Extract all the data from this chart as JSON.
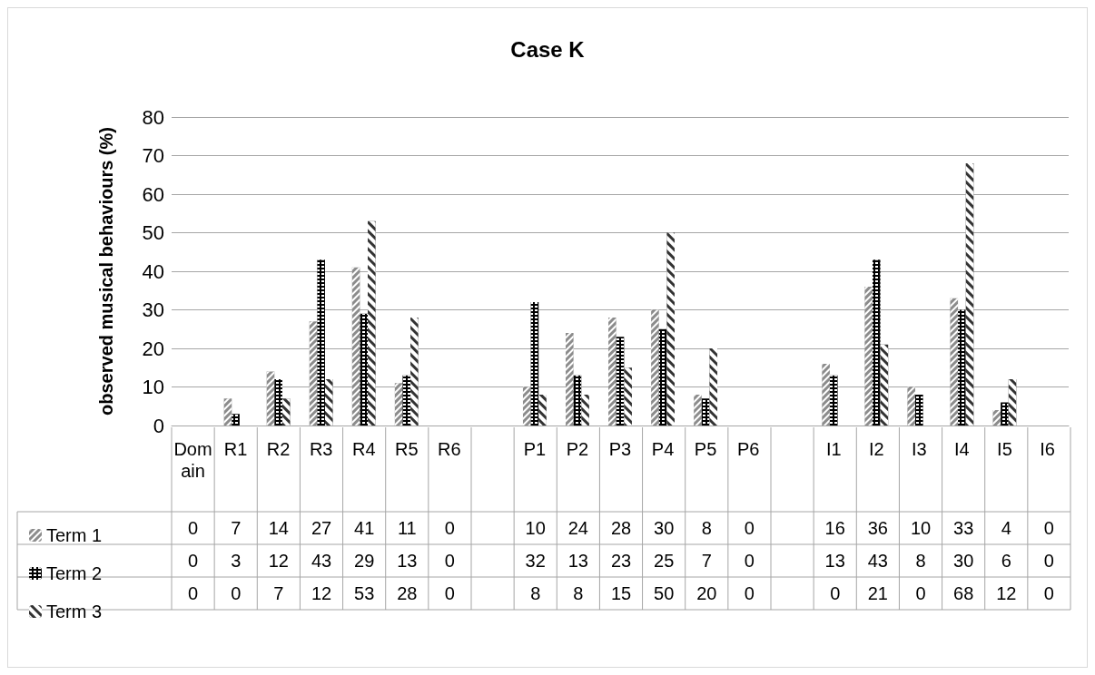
{
  "chart_data": {
    "type": "bar",
    "title": "Case K",
    "ylabel": "observed musical behaviours (%)",
    "categories": [
      "Domain",
      "R1",
      "R2",
      "R3",
      "R4",
      "R5",
      "R6",
      null,
      "P1",
      "P2",
      "P3",
      "P4",
      "P5",
      "P6",
      null,
      "I1",
      "I2",
      "I3",
      "I4",
      "I5",
      "I6"
    ],
    "series": [
      {
        "name": "Term 1",
        "color": "#8c8c8c",
        "values": [
          0,
          7,
          14,
          27,
          41,
          11,
          0,
          null,
          10,
          24,
          28,
          30,
          8,
          0,
          null,
          16,
          36,
          10,
          33,
          4,
          0
        ]
      },
      {
        "name": "Term 2",
        "color": "#000000",
        "values": [
          0,
          3,
          12,
          43,
          29,
          13,
          0,
          null,
          32,
          13,
          23,
          25,
          7,
          0,
          null,
          13,
          43,
          8,
          30,
          6,
          0
        ]
      },
      {
        "name": "Term 3",
        "color": "#333333",
        "values": [
          0,
          0,
          7,
          12,
          53,
          28,
          0,
          null,
          8,
          8,
          15,
          50,
          20,
          0,
          null,
          0,
          21,
          0,
          68,
          12,
          0
        ]
      }
    ],
    "ylim": [
      0,
      80
    ],
    "yticks": [
      0,
      10,
      20,
      30,
      40,
      50,
      60,
      70,
      80
    ],
    "grid": "y",
    "legend": "bottom left",
    "data_labels": true
  }
}
